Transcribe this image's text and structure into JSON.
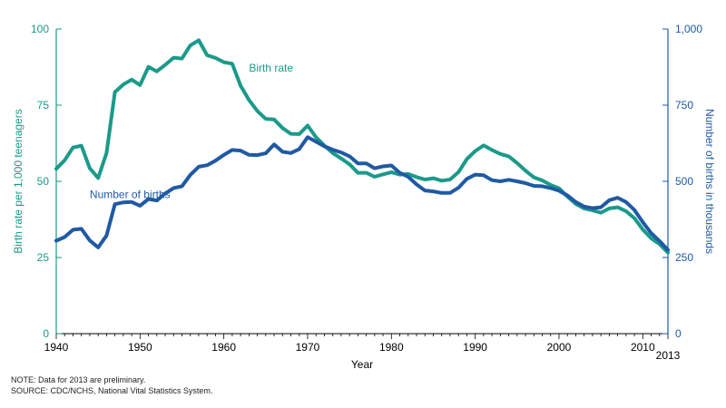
{
  "chart_data": {
    "type": "line",
    "xlabel": "Year",
    "ylabel_left": "Birth rate per 1,000 teenagers",
    "ylabel_right": "Number of births in thousands",
    "xlim": [
      1940,
      2013
    ],
    "ylim_left": [
      0,
      100
    ],
    "ylim_right": [
      0,
      1000
    ],
    "x_ticks": [
      "1940",
      "1950",
      "1960",
      "1970",
      "1980",
      "1990",
      "2000",
      "2010",
      "2013"
    ],
    "y_left_ticks": [
      "0",
      "25",
      "50",
      "75",
      "100"
    ],
    "y_right_ticks": [
      "0",
      "250",
      "500",
      "750",
      "1,000"
    ],
    "colors": {
      "birth_rate": "#1a9a8a",
      "births": "#1f5aa3",
      "axis_left": "#1a9a8a",
      "axis_right": "#1f5aa3"
    },
    "series": [
      {
        "name": "Birth rate",
        "axis": "left",
        "x": [
          1940,
          1941,
          1942,
          1943,
          1944,
          1945,
          1946,
          1947,
          1948,
          1949,
          1950,
          1951,
          1952,
          1953,
          1954,
          1955,
          1956,
          1957,
          1958,
          1959,
          1960,
          1961,
          1962,
          1963,
          1964,
          1965,
          1966,
          1967,
          1968,
          1969,
          1970,
          1971,
          1972,
          1973,
          1974,
          1975,
          1976,
          1977,
          1978,
          1979,
          1980,
          1981,
          1982,
          1983,
          1984,
          1985,
          1986,
          1987,
          1988,
          1989,
          1990,
          1991,
          1992,
          1993,
          1994,
          1995,
          1996,
          1997,
          1998,
          1999,
          2000,
          2001,
          2002,
          2003,
          2004,
          2005,
          2006,
          2007,
          2008,
          2009,
          2010,
          2011,
          2012,
          2013
        ],
        "values": [
          54.1,
          56.9,
          61.1,
          61.7,
          54.3,
          51.1,
          59.3,
          79.3,
          81.8,
          83.4,
          81.6,
          87.6,
          86.1,
          88.2,
          90.6,
          90.3,
          94.6,
          96.3,
          91.4,
          90.5,
          89.1,
          88.6,
          81.4,
          76.7,
          73.1,
          70.5,
          70.3,
          67.5,
          65.6,
          65.5,
          68.3,
          64.5,
          61.7,
          59.3,
          57.5,
          55.6,
          52.8,
          52.8,
          51.5,
          52.3,
          53.0,
          52.2,
          52.4,
          51.4,
          50.6,
          51.0,
          50.2,
          50.6,
          53.0,
          57.3,
          59.9,
          61.8,
          60.3,
          59.0,
          58.2,
          56.0,
          53.5,
          51.3,
          50.3,
          48.8,
          47.7,
          45.0,
          42.6,
          41.1,
          40.5,
          39.7,
          41.1,
          41.5,
          40.2,
          37.9,
          34.2,
          31.3,
          29.4,
          26.6
        ]
      },
      {
        "name": "Number of births",
        "axis": "right",
        "x": [
          1940,
          1941,
          1942,
          1943,
          1944,
          1945,
          1946,
          1947,
          1948,
          1949,
          1950,
          1951,
          1952,
          1953,
          1954,
          1955,
          1956,
          1957,
          1958,
          1959,
          1960,
          1961,
          1962,
          1963,
          1964,
          1965,
          1966,
          1967,
          1968,
          1969,
          1970,
          1971,
          1972,
          1973,
          1974,
          1975,
          1976,
          1977,
          1978,
          1979,
          1980,
          1981,
          1982,
          1983,
          1984,
          1985,
          1986,
          1987,
          1988,
          1989,
          1990,
          1991,
          1992,
          1993,
          1994,
          1995,
          1996,
          1997,
          1998,
          1999,
          2000,
          2001,
          2002,
          2003,
          2004,
          2005,
          2006,
          2007,
          2008,
          2009,
          2010,
          2011,
          2012,
          2013
        ],
        "values": [
          305,
          317,
          341,
          344,
          306,
          283,
          322,
          425,
          431,
          432,
          420,
          442,
          437,
          460,
          478,
          484,
          521,
          548,
          553,
          568,
          587,
          603,
          601,
          587,
          586,
          592,
          621,
          597,
          593,
          606,
          645,
          630,
          615,
          604,
          595,
          582,
          559,
          559,
          543,
          549,
          552,
          528,
          515,
          490,
          470,
          467,
          462,
          462,
          479,
          508,
          522,
          520,
          504,
          500,
          505,
          500,
          494,
          485,
          484,
          478,
          469,
          454,
          432,
          417,
          412,
          415,
          438,
          446,
          432,
          406,
          366,
          330,
          304,
          275
        ]
      }
    ],
    "annotations": [
      {
        "text": "Birth rate",
        "x": 1963,
        "y": 86,
        "axis": "left"
      },
      {
        "text": "Number of births",
        "x": 1944,
        "y": 445,
        "axis": "right"
      }
    ]
  },
  "notes": {
    "note": "NOTE: Data for 2013 are preliminary.",
    "source": "SOURCE: CDC/NCHS, National Vital Statistics System."
  }
}
